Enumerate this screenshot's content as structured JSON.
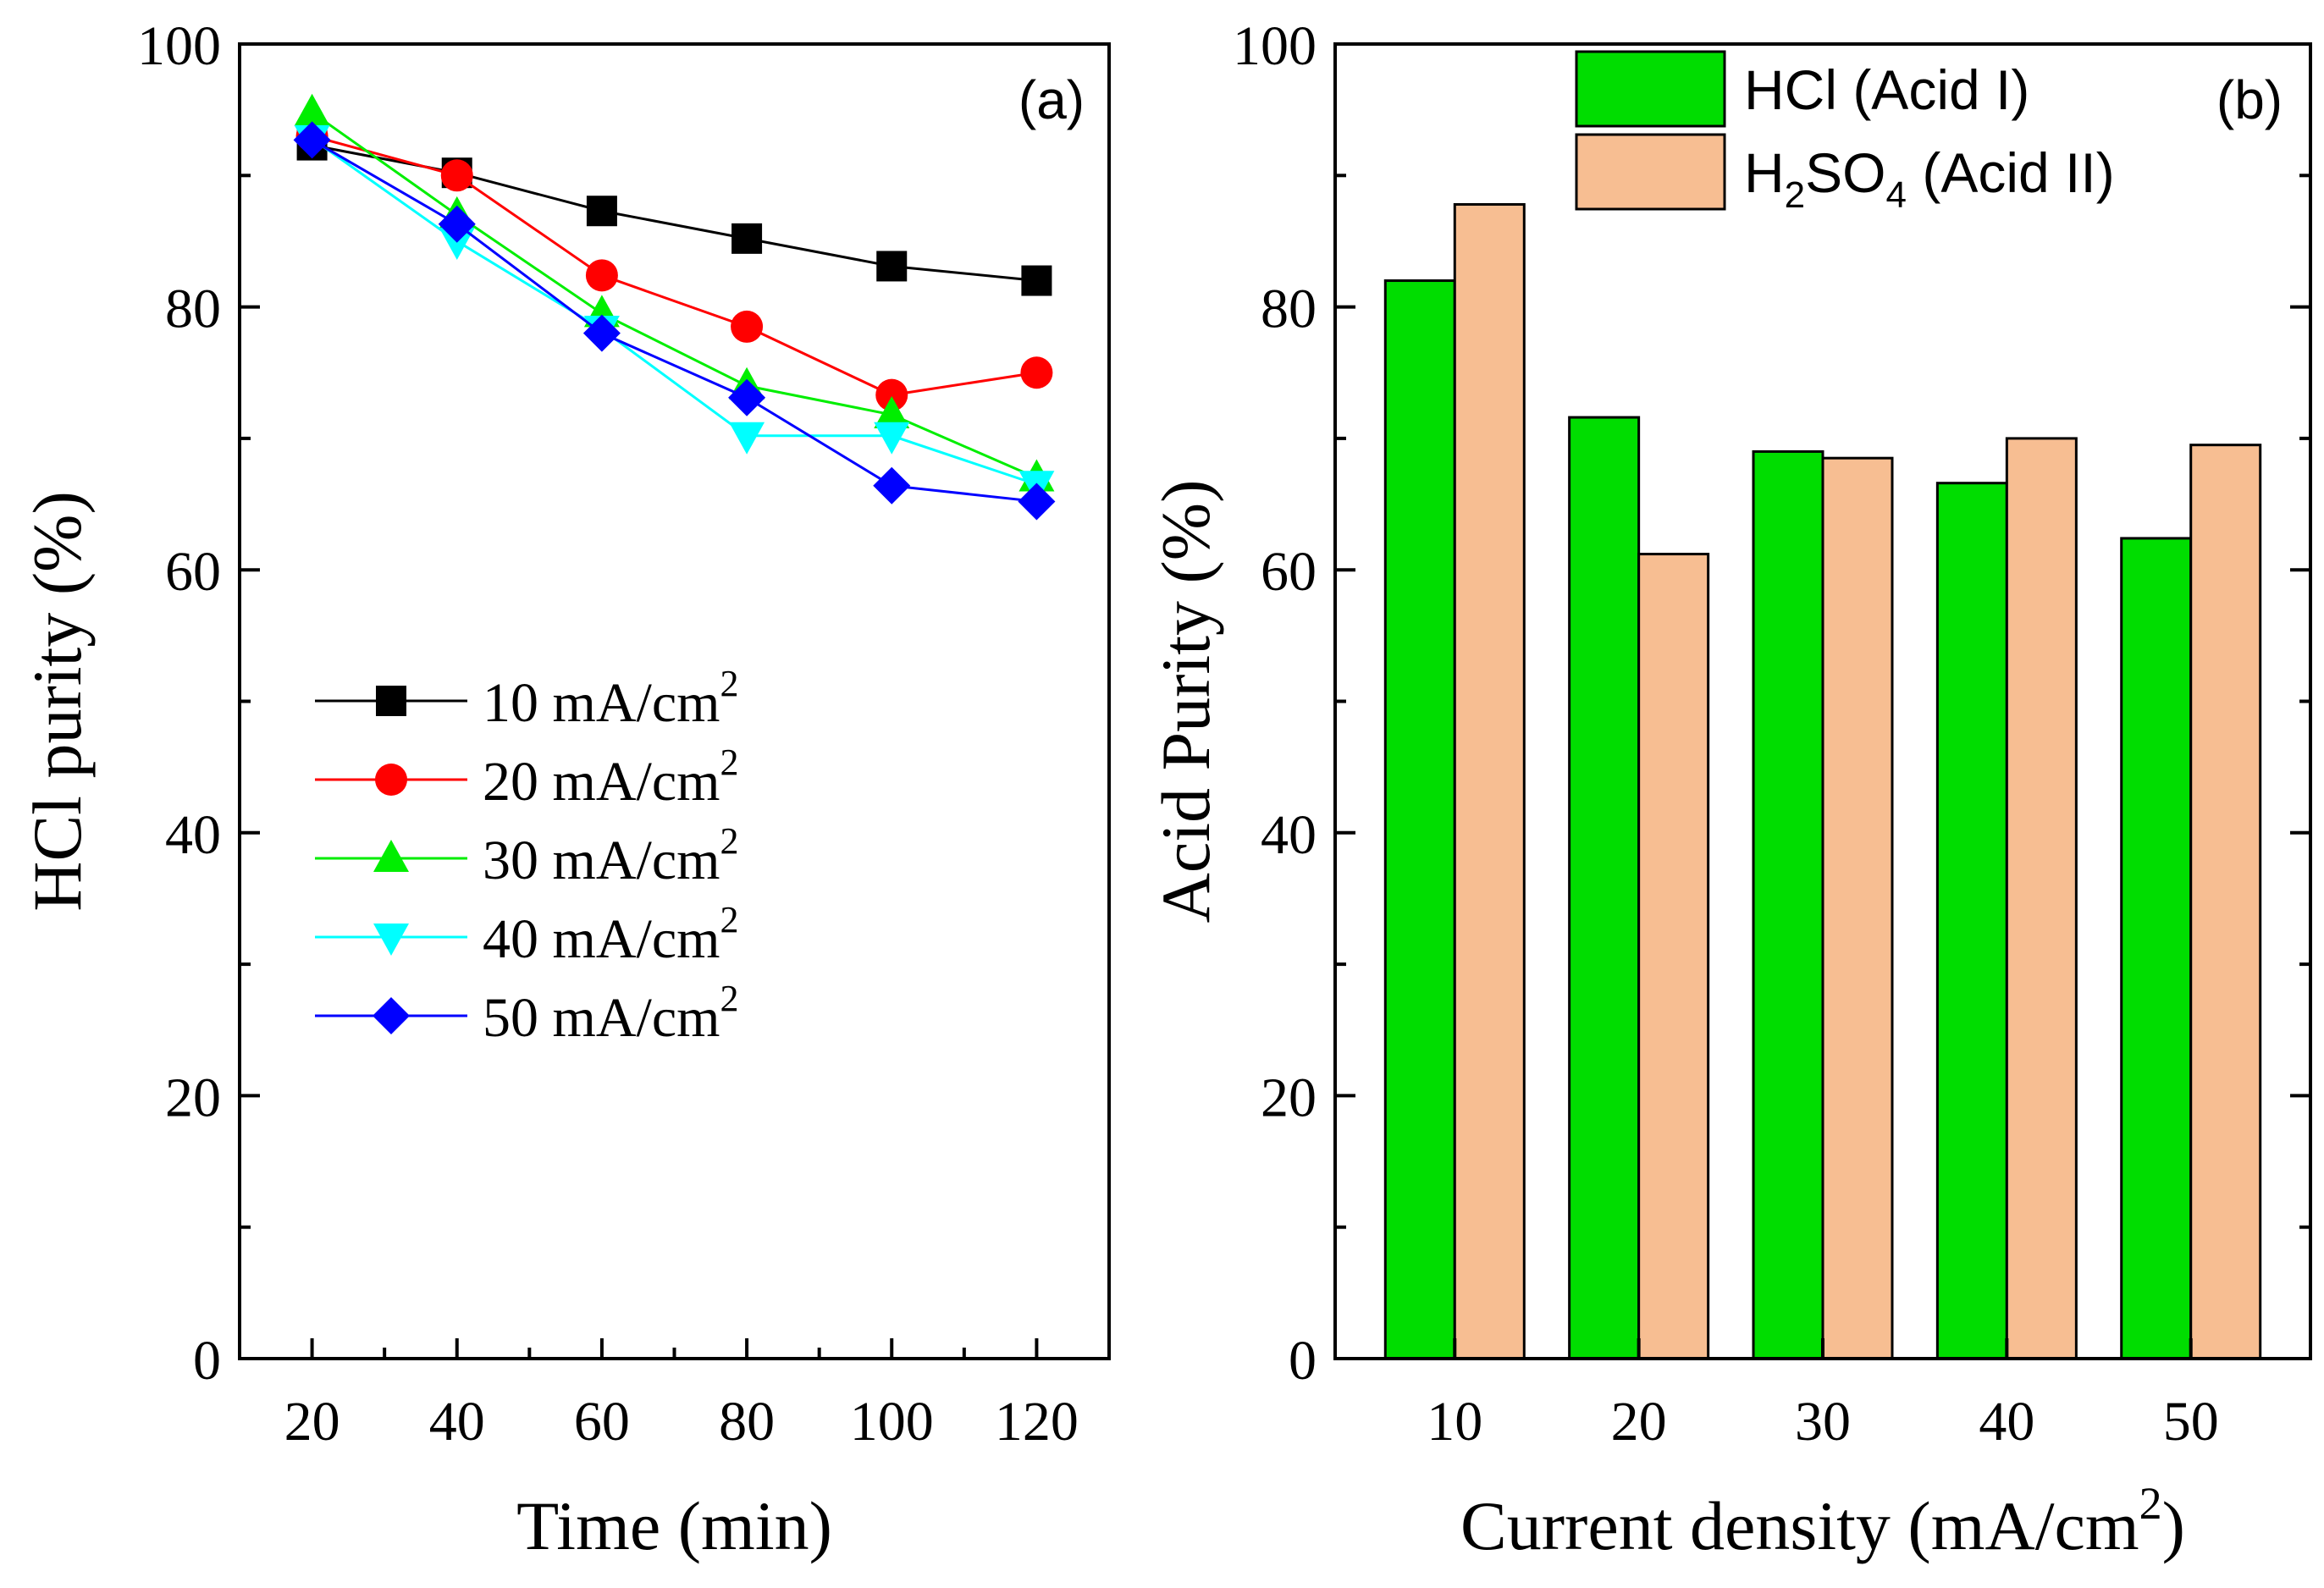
{
  "chart_data": [
    {
      "type": "line",
      "panel_label": "(a)",
      "xlabel": "Time (min)",
      "ylabel": "HCl purity (%)",
      "x": [
        20,
        40,
        60,
        80,
        100,
        120
      ],
      "xticks": [
        "20",
        "40",
        "60",
        "80",
        "100",
        "120"
      ],
      "yticks": [
        "0",
        "20",
        "40",
        "60",
        "80",
        "100"
      ],
      "xlim": [
        10,
        130
      ],
      "ylim": [
        0,
        100
      ],
      "legend_position": "center-left",
      "series": [
        {
          "name": "10 mA/cm",
          "sup": "2",
          "color": "#000000",
          "marker": "square",
          "values": [
            92.3,
            90.2,
            87.3,
            85.2,
            83.1,
            82.0
          ]
        },
        {
          "name": "20 mA/cm",
          "sup": "2",
          "color": "#ff0000",
          "marker": "circle",
          "values": [
            93.0,
            90.0,
            82.4,
            78.5,
            73.3,
            75.0
          ]
        },
        {
          "name": "30 mA/cm",
          "sup": "2",
          "color": "#00ee00",
          "marker": "triangle-up",
          "values": [
            94.8,
            87.0,
            79.5,
            74.0,
            71.8,
            67.0
          ]
        },
        {
          "name": "40 mA/cm",
          "sup": "2",
          "color": "#00ffff",
          "marker": "triangle-down",
          "values": [
            92.8,
            85.0,
            78.3,
            70.2,
            70.2,
            66.5
          ]
        },
        {
          "name": "50 mA/cm",
          "sup": "2",
          "color": "#0000ff",
          "marker": "diamond",
          "values": [
            92.7,
            86.3,
            78.0,
            73.1,
            66.4,
            65.2
          ]
        }
      ]
    },
    {
      "type": "bar",
      "panel_label": "(b)",
      "xlabel": "Current density (mA/cm",
      "xlabel_sup": "2",
      "xlabel_tail": ")",
      "ylabel": "Acid Purity (%)",
      "categories": [
        "10",
        "20",
        "30",
        "40",
        "50"
      ],
      "yticks": [
        "0",
        "20",
        "40",
        "60",
        "80",
        "100"
      ],
      "ylim": [
        0,
        100
      ],
      "legend_position": "top-center",
      "series": [
        {
          "name": "HCl (Acid I)",
          "color": "#00dd00",
          "values": [
            82.0,
            71.6,
            69.0,
            66.6,
            62.4
          ]
        },
        {
          "name": "H2SO4 (Acid II)",
          "color": "#f7be92",
          "label_parts": [
            "H",
            "2",
            "SO",
            "4",
            " (Acid II)"
          ],
          "values": [
            87.8,
            61.2,
            68.5,
            70.0,
            69.5
          ]
        }
      ]
    }
  ]
}
